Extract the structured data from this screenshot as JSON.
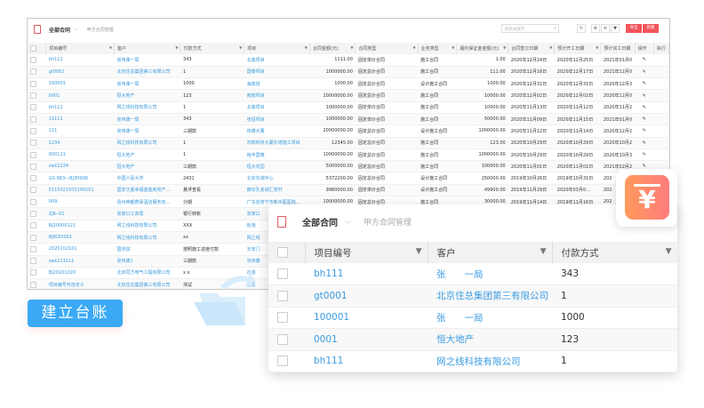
{
  "window": {
    "title": "全部合同",
    "subtitle": "甲方合同管理",
    "search_placeholder": "搜索关键字",
    "export_label": "导出",
    "new_label": "新建"
  },
  "bg_table": {
    "columns": [
      "项目编号",
      "客户",
      "付款方式",
      "项目",
      "合同金额(元)",
      "合同类型",
      "业务类型",
      "履约保证金金额(元)",
      "合同签订日期",
      "预计开工日期",
      "预计完工日期",
      "操作",
      "执行"
    ],
    "rows": [
      [
        "bh111",
        "张伟康一局",
        "343",
        "北装项目",
        "1111.00",
        "固定单价合同",
        "施工合同",
        "1.00",
        "2020年12月24日",
        "2020年12月25日",
        "2021年01月0"
      ],
      [
        "gt0001",
        "北京住总集团第三有限公司",
        "1",
        "国泰项目",
        "1000000.00",
        "固定总价合同",
        "施工合同",
        "111.00",
        "2020年12月16日",
        "2020年12月17日",
        "2021年12月0"
      ],
      [
        "100001",
        "张伟康一局",
        "1000",
        "海底捞",
        "1000.00",
        "固定总价合同",
        "设计施工合同",
        "1000.00",
        "2020年12月31日",
        "2020年12月31日",
        "2020年12月3"
      ],
      [
        "0001",
        "恒大地产",
        "123",
        "南部项目",
        "10000000.00",
        "固定总价合同",
        "施工合同",
        "10000.00",
        "2020年12月02日",
        "2020年12月02日",
        "2020年12月0"
      ],
      [
        "bh111",
        "网之线科技有限公司",
        "1",
        "北装项目",
        "1000000.00",
        "固定单价合同",
        "施工合同",
        "10000.00",
        "2020年11月13日",
        "2020年11月12日",
        "2020年11月2"
      ],
      [
        "11111",
        "张伟康一局",
        "343",
        "张恒项目",
        "1000000.00",
        "固定单价合同",
        "施工合同",
        "50000.00",
        "2020年11月09日",
        "2020年11月15日",
        "2021年01月0"
      ],
      [
        "111",
        "张伟康一局",
        "三期款",
        "伟康大厦",
        "20000000.00",
        "固定总价合同",
        "设计施工合同",
        "1000000.00",
        "2020年11月12日",
        "2020年11月14日",
        "2020年12月2"
      ],
      [
        "1234",
        "网之线科技有限公司",
        "1",
        "鸿鹄科技大厦外墙施工项目",
        "12345.00",
        "固定总价合同",
        "施工合同",
        "123.00",
        "2020年10月29日",
        "2020年10月29日",
        "2020年10月2"
      ],
      [
        "000111",
        "恒大地产",
        "1",
        "裕丰国寓",
        "10000000.00",
        "固定总价合同",
        "施工合同",
        "1000000.00",
        "2020年10月29日",
        "2020年10月29日",
        "2020年10月3"
      ],
      [
        "zwk1234",
        "恒大地产",
        "三期款",
        "恒大花园",
        "5000000.00",
        "固定总价合同",
        "施工合同",
        "100000.00",
        "2020年11月01日",
        "2020年11月01日",
        "2021年02月2"
      ],
      [
        "GS-983—BJ30998",
        "中国人民大学",
        "2431",
        "北京东城中心",
        "5372200.00",
        "固定总价合同",
        "设计施工合同",
        "250000.00",
        "2019年10月26日",
        "2019年10月31日",
        "202"
      ],
      [
        "511502150319010​1",
        "国安华夏幸福基金房地产…",
        "悬浮查看",
        "廊坊孔雀城汇景轩",
        "9980000.00",
        "固定单价合同",
        "设计施工合同",
        "49900.00",
        "2019年11月29日",
        "2020年03月0…",
        "202"
      ],
      [
        "009",
        "贵州帝都蔚豪酒店服务有…",
        "分期",
        "广东省普宁市新中医医院…",
        "10000000.00",
        "固定总价合同",
        "施工合同",
        "30000.00",
        "2019年11月14日",
        "2019年11月16日",
        "202"
      ],
      [
        "ZJK--01",
        "张家口工商局",
        "银行转账",
        "张家口"
      ],
      [
        "BJ20000121",
        "网之线科技有限公司",
        "XXX",
        "赵凌"
      ],
      [
        "BJWZX001",
        "网之线科技有限公司",
        "xx",
        "网之线"
      ],
      [
        "2020102101",
        "国务院",
        "按照施工进度付款",
        "天安门"
      ],
      [
        "zwk111111",
        "张伟康1",
        "三期款",
        "张伟康"
      ],
      [
        "BJ20201020",
        "北京同方电气工程有限公司",
        "x x",
        "赵凌"
      ],
      [
        "项目编号可自定义",
        "北京住总集团第三有限公司",
        "测试",
        "住总"
      ]
    ]
  },
  "card": {
    "title": "全部合同",
    "subtitle": "甲方合同管理",
    "columns": [
      "项目编号",
      "客户",
      "付款方式"
    ],
    "rows": [
      [
        "bh111",
        "张　　一局",
        "343"
      ],
      [
        "gt0001",
        "北京住总集团第三有限公司",
        "1"
      ],
      [
        "100001",
        "张　　一局",
        "1000"
      ],
      [
        "0001",
        "恒大地产",
        "123"
      ],
      [
        "bh111",
        "网之线科技有限公司",
        "1"
      ]
    ]
  },
  "badge": {
    "icon": "yen-download-icon",
    "colors": [
      "#ff9a5c",
      "#ff7c7c"
    ]
  },
  "cta": {
    "label": "建立台账",
    "color": "#3ba9f6"
  },
  "accent": "#3a9be0"
}
